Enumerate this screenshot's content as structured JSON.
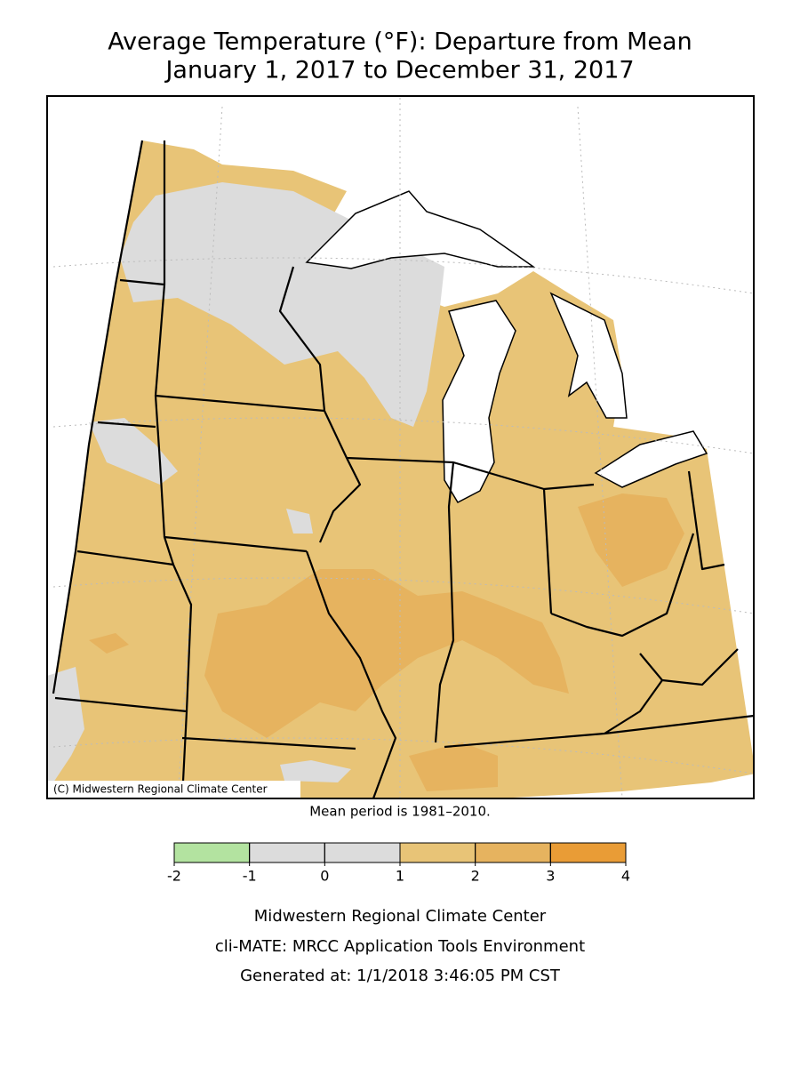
{
  "title": [
    "Average Temperature (°F): Departure from Mean",
    "January 1, 2017 to December 31, 2017"
  ],
  "map": {
    "credit": "(C) Midwestern Regional Climate Center",
    "note": "Mean period is 1981–2010."
  },
  "legend": {
    "bins": [
      -2,
      -1,
      0,
      1,
      2,
      3,
      4
    ],
    "colors": [
      "#b3e3a0",
      "#dcdcdc",
      "#dcdcdc",
      "#e8c477",
      "#e6b35f",
      "#e99c36"
    ]
  },
  "footer": [
    "Midwestern Regional Climate Center",
    "cli-MATE: MRCC Application Tools Environment",
    "Generated at: 1/1/2018 3:46:05 PM CST"
  ]
}
